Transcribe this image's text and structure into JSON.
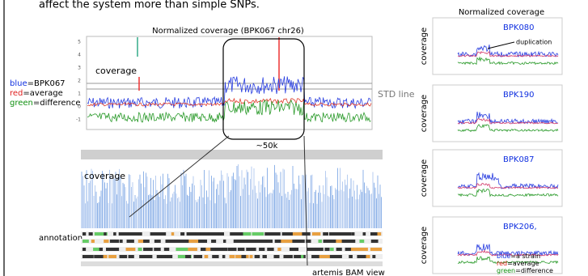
{
  "header": {
    "text": "affect the system more than simple SNPs."
  },
  "main_chart": {
    "title": "Normalized  coverage (BPK067 chr26)",
    "y_labels": [
      "5",
      "4",
      "3",
      "2",
      "1",
      "0",
      "-1"
    ],
    "coverage_label": "coverage",
    "std_label": "STD line",
    "window_label": "~50k"
  },
  "legend": {
    "items": [
      {
        "color_word": "blue",
        "text": "=BPK067"
      },
      {
        "color_word": "red",
        "text": "=average"
      },
      {
        "color_word": "green",
        "text": "=difference"
      }
    ]
  },
  "bam_view": {
    "coverage_label": "coverage",
    "annotation_label": "annotation",
    "caption": "artemis BAM view"
  },
  "side_panels": {
    "title": "Normalized  coverage",
    "panels": [
      {
        "y_label": "coverage",
        "strain": "BPK080",
        "note": "duplication"
      },
      {
        "y_label": "coverage",
        "strain": "BPK190"
      },
      {
        "y_label": "coverage",
        "strain": "BPK087"
      },
      {
        "y_label": "coverage",
        "strain": "BPK206,"
      }
    ],
    "legend": {
      "items": [
        {
          "color_word": "blue",
          "text": "=a strain"
        },
        {
          "color_word": "red",
          "text": "=average"
        },
        {
          "color_word": "green",
          "text": "=difference"
        }
      ]
    }
  }
}
